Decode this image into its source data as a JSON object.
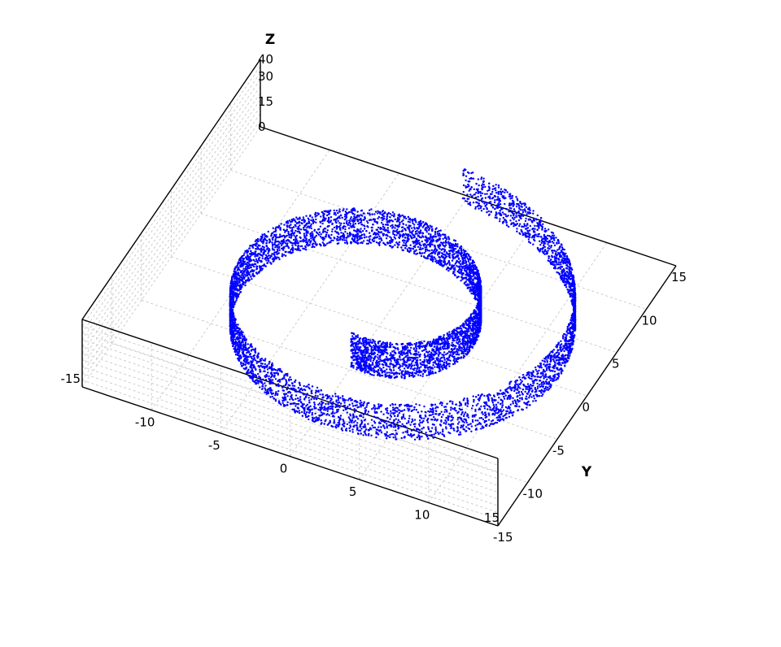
{
  "chart_data": {
    "type": "scatter",
    "subtype": "3d-scatter",
    "dataset": "swiss roll",
    "xlim": [
      -15,
      15
    ],
    "ylim": [
      -15,
      15
    ],
    "zlim": [
      0,
      40
    ],
    "x_ticks": [
      "-15",
      "-10",
      "-5",
      "0",
      "5",
      "10",
      "15"
    ],
    "y_ticks": [
      "-15",
      "-10",
      "-5",
      "0",
      "5",
      "10",
      "15"
    ],
    "z_ticks": [
      "0",
      "15",
      "30",
      "40"
    ],
    "xlabel": "",
    "ylabel": "Y",
    "zlabel": "Z",
    "grid": true,
    "series": [
      {
        "color": "#0000ff",
        "point_count": 10000,
        "x": "t * cos(t)",
        "y": "t * sin(t)",
        "t_range": [
          4.71,
          14.14
        ],
        "z_range": [
          0,
          21
        ]
      }
    ]
  }
}
